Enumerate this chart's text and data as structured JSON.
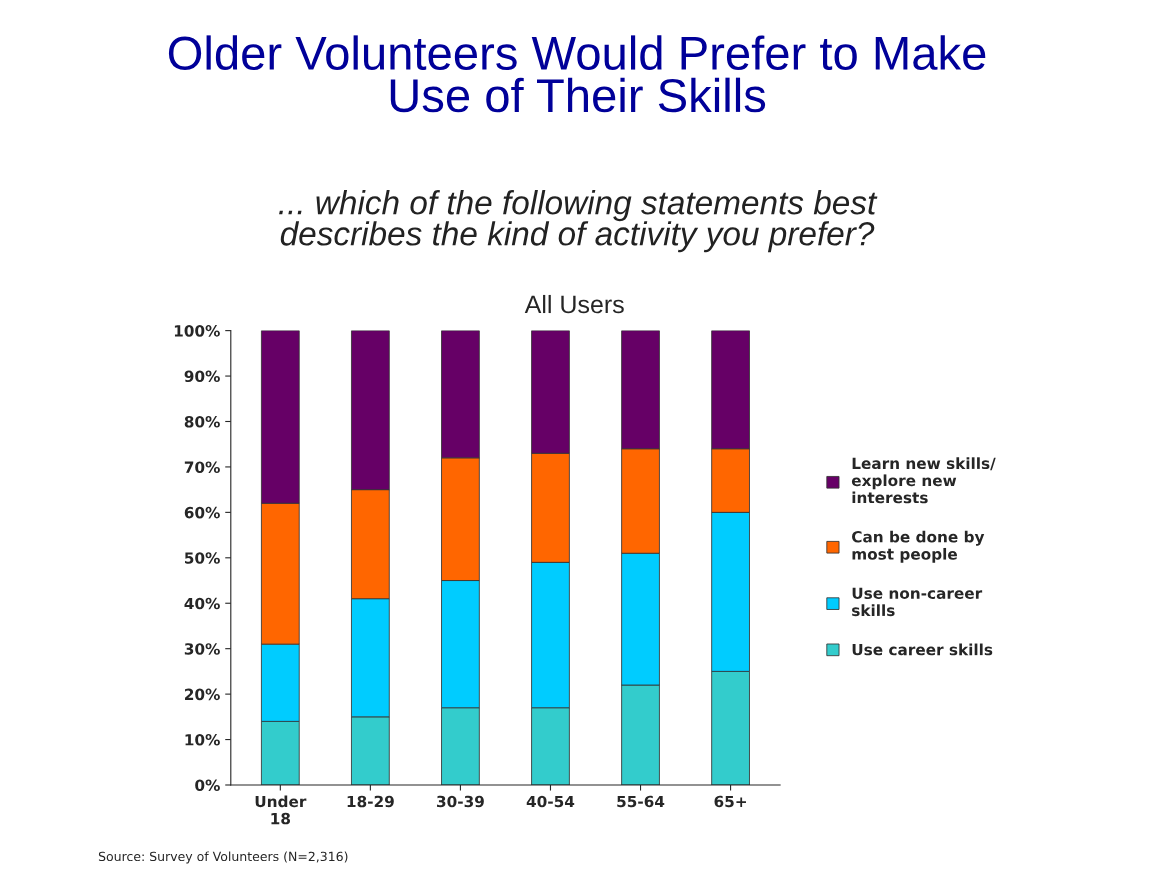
{
  "chart_data": {
    "type": "bar",
    "stacked": true,
    "title": "Older Volunteers Would Prefer to Make\nUse of Their Skills",
    "subtitle": "... which of the following statements best\ndescribes the kind of activity you prefer?",
    "annotations": [
      "All Users",
      "Source: Survey of Volunteers (N=2,316)"
    ],
    "categories": [
      "Under\n18",
      "18-29",
      "30-39",
      "40-54",
      "55-64",
      "65+"
    ],
    "series": [
      {
        "name": "Use career skills",
        "color": "#33cccc",
        "values": [
          14,
          15,
          17,
          17,
          22,
          25
        ]
      },
      {
        "name": "Use non-career\nskills",
        "color": "#00ccff",
        "values": [
          17,
          26,
          28,
          32,
          29,
          35
        ]
      },
      {
        "name": "Can be done by\nmost people",
        "color": "#ff6600",
        "values": [
          31,
          24,
          27,
          24,
          23,
          14
        ]
      },
      {
        "name": "Learn new skills/\nexplore new\ninterests",
        "color": "#660066",
        "values": [
          38,
          35,
          28,
          27,
          26,
          26
        ]
      }
    ],
    "ylim": [
      0,
      100
    ],
    "yticks": [
      {
        "value": 0,
        "label": "0%"
      },
      {
        "value": 10,
        "label": "10%"
      },
      {
        "value": 20,
        "label": "20%"
      },
      {
        "value": 30,
        "label": "30%"
      },
      {
        "value": 40,
        "label": "40%"
      },
      {
        "value": 50,
        "label": "50%"
      },
      {
        "value": 60,
        "label": "60%"
      },
      {
        "value": 70,
        "label": "70%"
      },
      {
        "value": 80,
        "label": "80%"
      },
      {
        "value": 90,
        "label": "90%"
      },
      {
        "value": 100,
        "label": "100%"
      }
    ],
    "legend": "right"
  }
}
